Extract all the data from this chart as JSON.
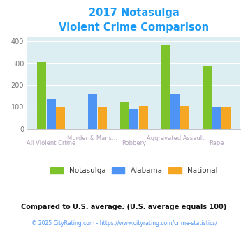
{
  "title_line1": "2017 Notasulga",
  "title_line2": "Violent Crime Comparison",
  "categories_top": [
    "",
    "Murder & Mans...",
    "",
    "Aggravated Assault",
    ""
  ],
  "categories_bot": [
    "All Violent Crime",
    "",
    "Robbery",
    "",
    "Rape"
  ],
  "notasulga": [
    305,
    0,
    125,
    385,
    288
  ],
  "alabama": [
    135,
    158,
    90,
    158,
    101
  ],
  "national": [
    102,
    102,
    103,
    103,
    102
  ],
  "notasulga_color": "#7dc42b",
  "alabama_color": "#4d94f5",
  "national_color": "#f5a623",
  "plot_bg": "#ddeef2",
  "title_color": "#1a9af5",
  "xlabel_top_color": "#b0a0b8",
  "xlabel_bot_color": "#b0a0b8",
  "legend_text_color": "#333333",
  "footnote_color": "#111111",
  "link_color": "#4d94f5",
  "ylim": [
    0,
    420
  ],
  "yticks": [
    0,
    100,
    200,
    300,
    400
  ],
  "footnote": "Compared to U.S. average. (U.S. average equals 100)",
  "copyright": "© 2025 CityRating.com - https://www.cityrating.com/crime-statistics/"
}
